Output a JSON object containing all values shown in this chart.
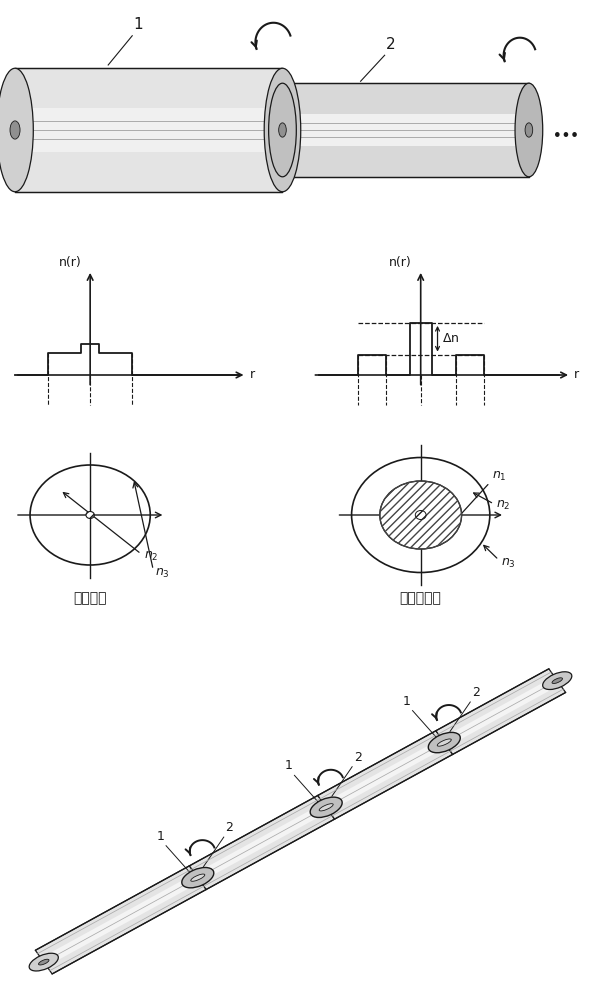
{
  "bg_color": "#ffffff",
  "line_color": "#1a1a1a",
  "fiber_body_color": "#e8e8e8",
  "fiber_body_color2": "#d0d0d0",
  "fiber_end_color": "#c8c8c8",
  "fiber_inner_color": "#b0b0b0",
  "connector_color": "#c0c0c0",
  "hatch_color": "#333333",
  "smf_label": "单模光纤",
  "dcf_label": "双包层光纤",
  "nr_label": "n(r)",
  "r_label": "r",
  "delta_n_label": "Δn",
  "label1": "1",
  "label2": "2",
  "dots": "..."
}
